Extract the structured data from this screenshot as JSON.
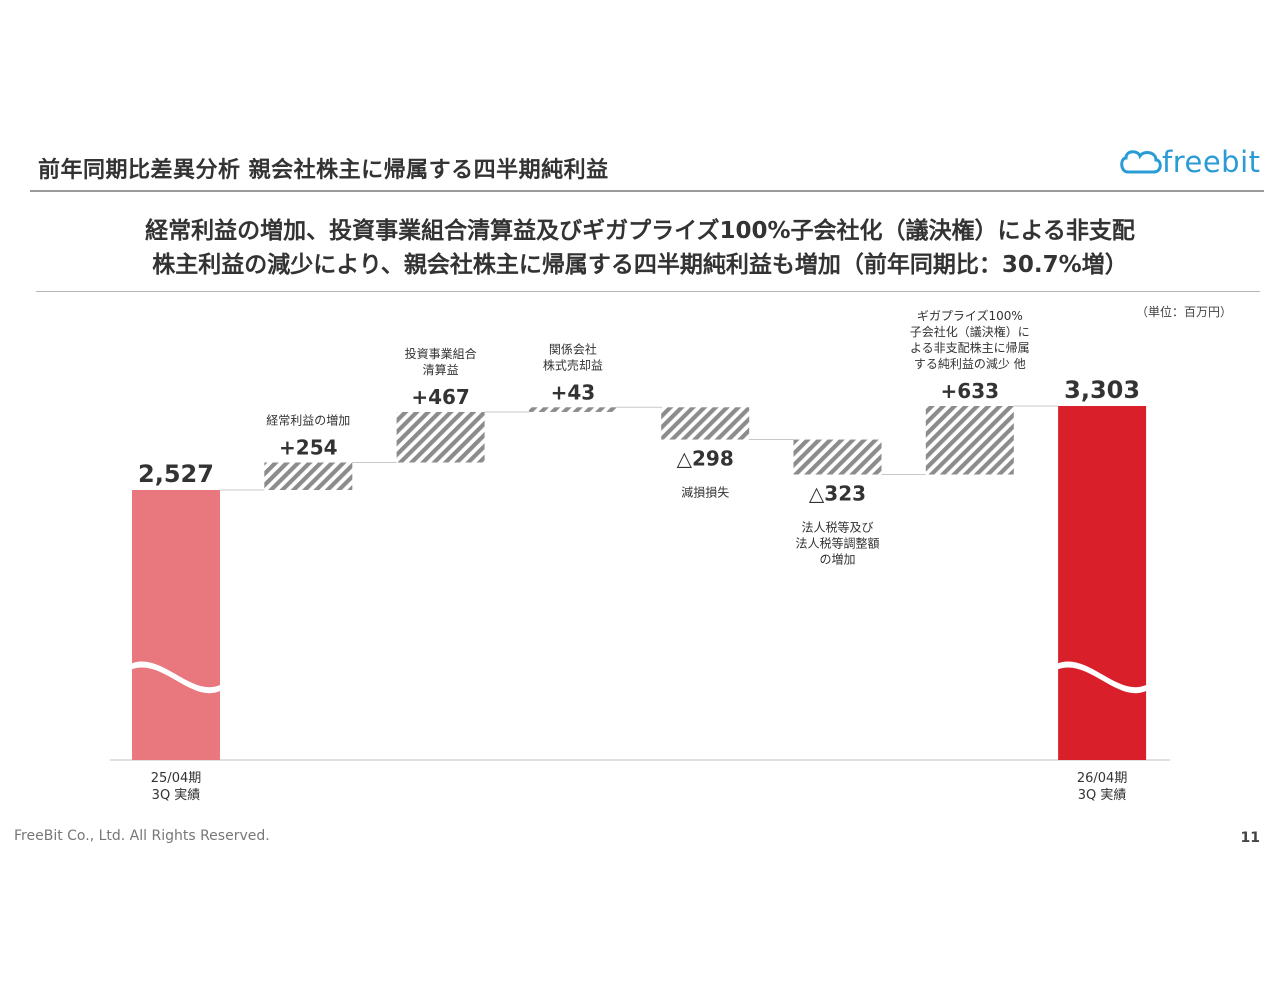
{
  "slide": {
    "title": "前年同期比差異分析 親会社株主に帰属する四半期純利益",
    "headline_line1": "経常利益の増加、投資事業組合清算益及びギガプライズ100%子会社化（議決権）による非支配",
    "headline_line2": "株主利益の減少により、親会社株主に帰属する四半期純利益も増加（前年同期比：30.7%増）",
    "unit": "（単位：百万円）",
    "logo_text": "freebit",
    "footer": "FreeBit Co., Ltd. All Rights Reserved.",
    "page_number": "11"
  },
  "colors": {
    "start_bar": "#e8777e",
    "end_bar": "#d9202a",
    "hatch": "#8c8c8c",
    "logo": "#2b9bd6"
  },
  "chart_data": {
    "type": "bar",
    "subtype": "waterfall",
    "title": "",
    "xlabel": "",
    "ylabel": "",
    "axis_break": true,
    "grid": false,
    "legend": "none",
    "items": [
      {
        "kind": "total",
        "value": 2527,
        "value_label": "2,527",
        "label_lines": [
          "25/04期",
          "3Q 実績"
        ]
      },
      {
        "kind": "delta",
        "value": 254,
        "value_label": "+254",
        "label_lines": [
          "経常利益の増加"
        ]
      },
      {
        "kind": "delta",
        "value": 467,
        "value_label": "+467",
        "label_lines": [
          "投資事業組合",
          "清算益"
        ]
      },
      {
        "kind": "delta",
        "value": 43,
        "value_label": "+43",
        "label_lines": [
          "関係会社",
          "株式売却益"
        ]
      },
      {
        "kind": "delta",
        "value": -298,
        "value_label": "△298",
        "label_lines": [
          "減損損失"
        ]
      },
      {
        "kind": "delta",
        "value": -323,
        "value_label": "△323",
        "label_lines": [
          "法人税等及び",
          "法人税等調整額",
          "の増加"
        ]
      },
      {
        "kind": "delta",
        "value": 633,
        "value_label": "+633",
        "label_lines": [
          "ギガプライズ100%",
          "子会社化（議決権）に",
          "よる非支配株主に帰属",
          "する純利益の減少 他"
        ]
      },
      {
        "kind": "total",
        "value": 3303,
        "value_label": "3,303",
        "label_lines": [
          "26/04期",
          "3Q 実績"
        ]
      }
    ]
  }
}
